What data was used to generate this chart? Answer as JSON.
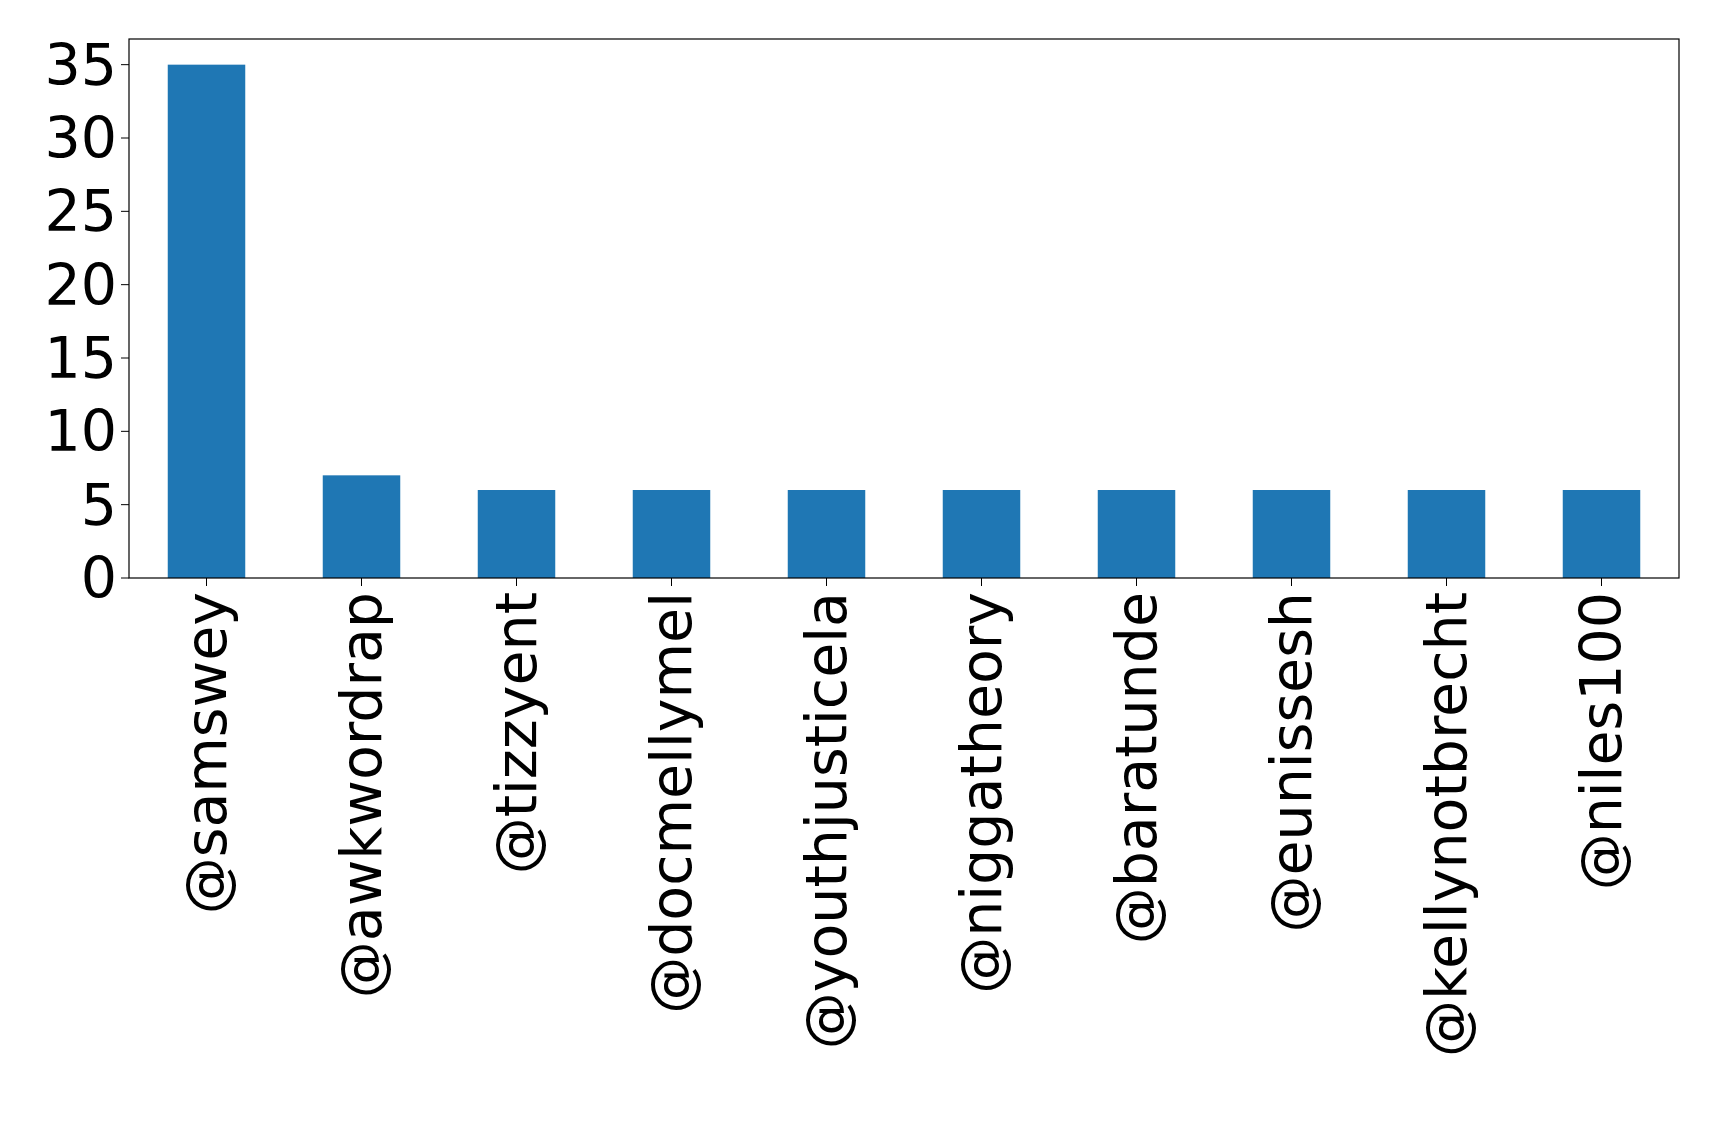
{
  "chart_data": {
    "type": "bar",
    "categories": [
      "@samswey",
      "@awkwordrap",
      "@tizzyent",
      "@docmellymel",
      "@youthjusticela",
      "@niggatheory",
      "@baratunde",
      "@eunissesh",
      "@kellynotbrecht",
      "@niles100"
    ],
    "values": [
      35,
      7,
      6,
      6,
      6,
      6,
      6,
      6,
      6,
      6
    ],
    "color": "#1f77b4",
    "ylim": [
      0,
      36.75
    ],
    "yticks": [
      0,
      5,
      10,
      15,
      20,
      25,
      30,
      35
    ],
    "grid": false
  }
}
